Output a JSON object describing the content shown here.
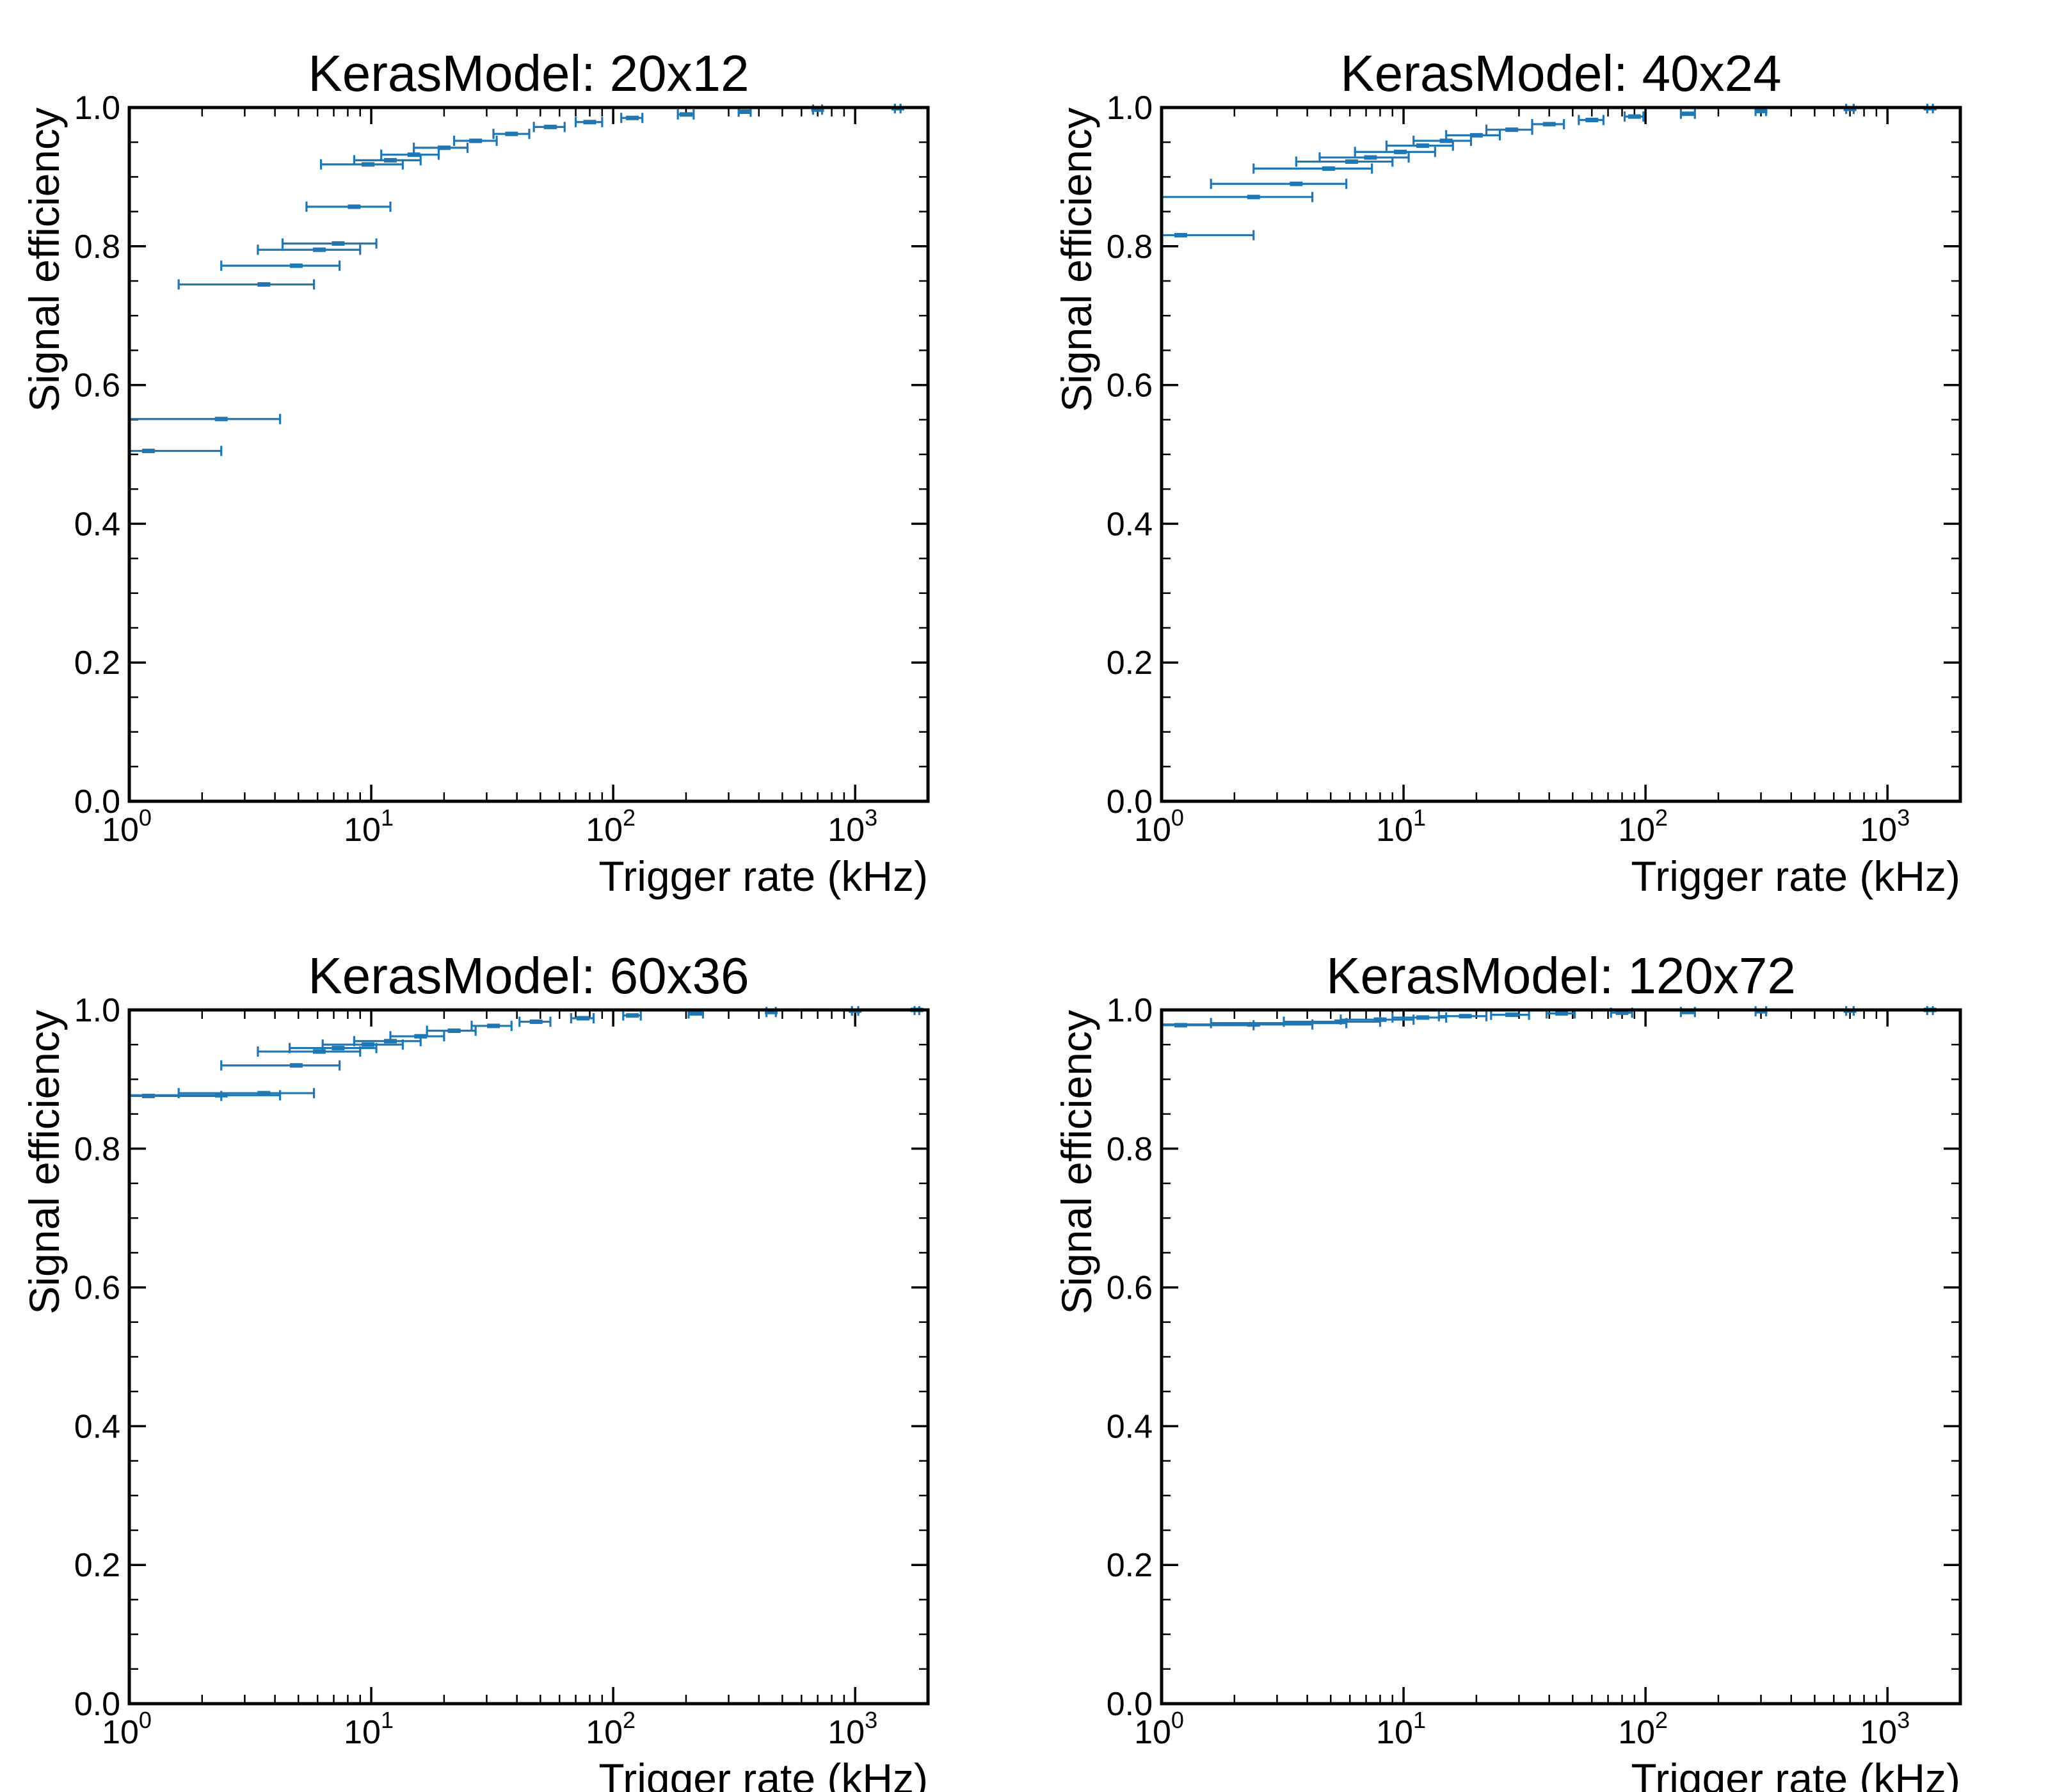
{
  "x_ticks": [
    {
      "base": "10",
      "exp": "0",
      "value": 1
    },
    {
      "base": "10",
      "exp": "1",
      "value": 10
    },
    {
      "base": "10",
      "exp": "2",
      "value": 100
    },
    {
      "base": "10",
      "exp": "3",
      "value": 1000
    }
  ],
  "y_ticks": [
    "0.0",
    "0.2",
    "0.4",
    "0.6",
    "0.8",
    "1.0"
  ],
  "color": "#1f77b4",
  "chart_data": [
    {
      "type": "errorbar",
      "title": "KerasModel: 20x12",
      "xlabel": "Trigger rate (kHz)",
      "ylabel": "Signal efficiency",
      "xscale": "log",
      "xlim": [
        1,
        2000
      ],
      "ylim": [
        0,
        1
      ],
      "points": [
        {
          "x": 1.2,
          "xlo": 1.0,
          "xhi": 2.4,
          "y": 0.505
        },
        {
          "x": 2.4,
          "xlo": 1.0,
          "xhi": 4.2,
          "y": 0.551
        },
        {
          "x": 3.6,
          "xlo": 1.6,
          "xhi": 5.8,
          "y": 0.745
        },
        {
          "x": 4.9,
          "xlo": 2.4,
          "xhi": 7.4,
          "y": 0.772
        },
        {
          "x": 6.1,
          "xlo": 3.4,
          "xhi": 9.0,
          "y": 0.795
        },
        {
          "x": 7.3,
          "xlo": 4.3,
          "xhi": 10.5,
          "y": 0.804
        },
        {
          "x": 8.5,
          "xlo": 5.4,
          "xhi": 12.0,
          "y": 0.857
        },
        {
          "x": 9.7,
          "xlo": 6.2,
          "xhi": 13.5,
          "y": 0.918
        },
        {
          "x": 12,
          "xlo": 8.5,
          "xhi": 16,
          "y": 0.924
        },
        {
          "x": 15,
          "xlo": 11,
          "xhi": 19,
          "y": 0.932
        },
        {
          "x": 20,
          "xlo": 15,
          "xhi": 25,
          "y": 0.942
        },
        {
          "x": 27,
          "xlo": 22,
          "xhi": 33,
          "y": 0.952
        },
        {
          "x": 38,
          "xlo": 32,
          "xhi": 45,
          "y": 0.962
        },
        {
          "x": 55,
          "xlo": 47,
          "xhi": 63,
          "y": 0.972
        },
        {
          "x": 80,
          "xlo": 70,
          "xhi": 90,
          "y": 0.979
        },
        {
          "x": 120,
          "xlo": 108,
          "xhi": 132,
          "y": 0.985
        },
        {
          "x": 200,
          "xlo": 185,
          "xhi": 215,
          "y": 0.99
        },
        {
          "x": 350,
          "xlo": 330,
          "xhi": 370,
          "y": 0.994
        },
        {
          "x": 700,
          "xlo": 670,
          "xhi": 730,
          "y": 0.997
        },
        {
          "x": 1500,
          "xlo": 1460,
          "xhi": 1540,
          "y": 0.999
        }
      ]
    },
    {
      "type": "errorbar",
      "title": "KerasModel: 40x24",
      "xlabel": "Trigger rate (kHz)",
      "ylabel": "Signal efficiency",
      "xscale": "log",
      "xlim": [
        1,
        2000
      ],
      "ylim": [
        0,
        1
      ],
      "points": [
        {
          "x": 1.2,
          "xlo": 1.0,
          "xhi": 2.4,
          "y": 0.816
        },
        {
          "x": 2.4,
          "xlo": 1.0,
          "xhi": 4.2,
          "y": 0.871
        },
        {
          "x": 3.6,
          "xlo": 1.6,
          "xhi": 5.8,
          "y": 0.89
        },
        {
          "x": 4.9,
          "xlo": 2.4,
          "xhi": 7.4,
          "y": 0.912
        },
        {
          "x": 6.1,
          "xlo": 3.6,
          "xhi": 9.0,
          "y": 0.922
        },
        {
          "x": 7.3,
          "xlo": 4.5,
          "xhi": 10.5,
          "y": 0.928
        },
        {
          "x": 9.7,
          "xlo": 6.3,
          "xhi": 13.5,
          "y": 0.936
        },
        {
          "x": 12,
          "xlo": 8.5,
          "xhi": 16,
          "y": 0.945
        },
        {
          "x": 15,
          "xlo": 11,
          "xhi": 19,
          "y": 0.952
        },
        {
          "x": 20,
          "xlo": 15,
          "xhi": 25,
          "y": 0.96
        },
        {
          "x": 28,
          "xlo": 22,
          "xhi": 34,
          "y": 0.968
        },
        {
          "x": 40,
          "xlo": 34,
          "xhi": 46,
          "y": 0.976
        },
        {
          "x": 60,
          "xlo": 53,
          "xhi": 67,
          "y": 0.982
        },
        {
          "x": 90,
          "xlo": 82,
          "xhi": 98,
          "y": 0.987
        },
        {
          "x": 150,
          "xlo": 140,
          "xhi": 160,
          "y": 0.991
        },
        {
          "x": 300,
          "xlo": 285,
          "xhi": 315,
          "y": 0.995
        },
        {
          "x": 700,
          "xlo": 675,
          "xhi": 725,
          "y": 0.998
        },
        {
          "x": 1500,
          "xlo": 1460,
          "xhi": 1540,
          "y": 0.999
        }
      ]
    },
    {
      "type": "errorbar",
      "title": "KerasModel: 60x36",
      "xlabel": "Trigger rate (kHz)",
      "ylabel": "Signal efficiency",
      "xscale": "log",
      "xlim": [
        1,
        2000
      ],
      "ylim": [
        0,
        1
      ],
      "points": [
        {
          "x": 1.2,
          "xlo": 1.0,
          "xhi": 2.4,
          "y": 0.876
        },
        {
          "x": 2.4,
          "xlo": 1.0,
          "xhi": 4.2,
          "y": 0.877
        },
        {
          "x": 3.6,
          "xlo": 1.6,
          "xhi": 5.8,
          "y": 0.88
        },
        {
          "x": 4.9,
          "xlo": 2.4,
          "xhi": 7.4,
          "y": 0.92
        },
        {
          "x": 6.1,
          "xlo": 3.4,
          "xhi": 9.0,
          "y": 0.94
        },
        {
          "x": 7.3,
          "xlo": 4.6,
          "xhi": 10.5,
          "y": 0.945
        },
        {
          "x": 9.7,
          "xlo": 6.3,
          "xhi": 13.5,
          "y": 0.95
        },
        {
          "x": 12,
          "xlo": 8.5,
          "xhi": 16,
          "y": 0.955
        },
        {
          "x": 16,
          "xlo": 12,
          "xhi": 20,
          "y": 0.962
        },
        {
          "x": 22,
          "xlo": 17,
          "xhi": 27,
          "y": 0.97
        },
        {
          "x": 32,
          "xlo": 26,
          "xhi": 38,
          "y": 0.977
        },
        {
          "x": 48,
          "xlo": 41,
          "xhi": 55,
          "y": 0.983
        },
        {
          "x": 75,
          "xlo": 67,
          "xhi": 83,
          "y": 0.988
        },
        {
          "x": 120,
          "xlo": 110,
          "xhi": 130,
          "y": 0.992
        },
        {
          "x": 220,
          "xlo": 205,
          "xhi": 235,
          "y": 0.995
        },
        {
          "x": 450,
          "xlo": 430,
          "xhi": 470,
          "y": 0.997
        },
        {
          "x": 1000,
          "xlo": 970,
          "xhi": 1030,
          "y": 0.999
        },
        {
          "x": 1800,
          "xlo": 1760,
          "xhi": 1840,
          "y": 1.0
        }
      ]
    },
    {
      "type": "errorbar",
      "title": "KerasModel: 120x72",
      "xlabel": "Trigger rate (kHz)",
      "ylabel": "Signal efficiency",
      "xscale": "log",
      "xlim": [
        1,
        2000
      ],
      "ylim": [
        0,
        1
      ],
      "points": [
        {
          "x": 1.2,
          "xlo": 1.0,
          "xhi": 2.4,
          "y": 0.978
        },
        {
          "x": 2.4,
          "xlo": 1.0,
          "xhi": 4.2,
          "y": 0.979
        },
        {
          "x": 3.6,
          "xlo": 1.6,
          "xhi": 5.8,
          "y": 0.981
        },
        {
          "x": 5.5,
          "xlo": 3.2,
          "xhi": 8.0,
          "y": 0.983
        },
        {
          "x": 8,
          "xlo": 5.5,
          "xhi": 11,
          "y": 0.986
        },
        {
          "x": 12,
          "xlo": 9,
          "xhi": 15,
          "y": 0.989
        },
        {
          "x": 18,
          "xlo": 14,
          "xhi": 22,
          "y": 0.991
        },
        {
          "x": 28,
          "xlo": 23,
          "xhi": 33,
          "y": 0.993
        },
        {
          "x": 45,
          "xlo": 39,
          "xhi": 51,
          "y": 0.995
        },
        {
          "x": 80,
          "xlo": 72,
          "xhi": 88,
          "y": 0.996
        },
        {
          "x": 150,
          "xlo": 140,
          "xhi": 160,
          "y": 0.997
        },
        {
          "x": 300,
          "xlo": 285,
          "xhi": 315,
          "y": 0.998
        },
        {
          "x": 700,
          "xlo": 675,
          "xhi": 725,
          "y": 0.999
        },
        {
          "x": 1500,
          "xlo": 1460,
          "xhi": 1540,
          "y": 1.0
        }
      ]
    }
  ]
}
